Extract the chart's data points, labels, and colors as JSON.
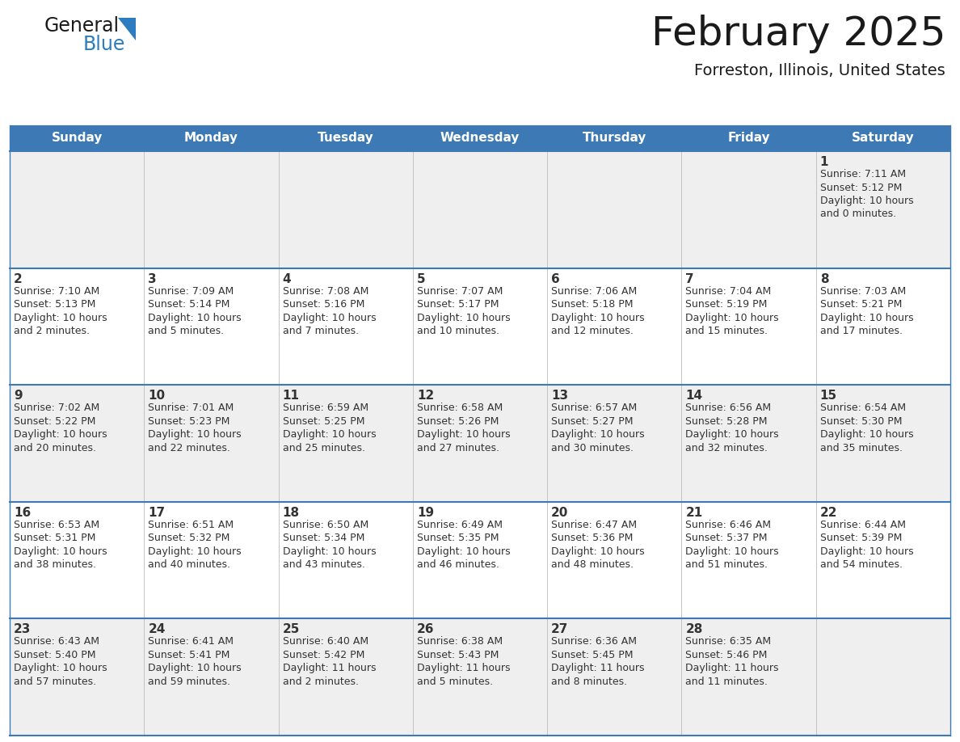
{
  "title": "February 2025",
  "subtitle": "Forreston, Illinois, United States",
  "header_bg_color": "#3D7AB5",
  "header_text_color": "#FFFFFF",
  "day_names": [
    "Sunday",
    "Monday",
    "Tuesday",
    "Wednesday",
    "Thursday",
    "Friday",
    "Saturday"
  ],
  "cell_bg_gray": "#EFEFEF",
  "cell_bg_white": "#FFFFFF",
  "cell_border_color": "#3D7AB5",
  "day_num_color": "#333333",
  "text_color": "#333333",
  "logo_general_color": "#1A1A1A",
  "logo_blue_color": "#2B7DBF",
  "title_fontsize": 36,
  "subtitle_fontsize": 14,
  "dayname_fontsize": 11,
  "day_num_fontsize": 11,
  "info_fontsize": 9,
  "calendar_data": [
    [
      null,
      null,
      null,
      null,
      null,
      null,
      {
        "day": 1,
        "sunrise": "7:11 AM",
        "sunset": "5:12 PM",
        "daylight": "10 hours\nand 0 minutes."
      }
    ],
    [
      {
        "day": 2,
        "sunrise": "7:10 AM",
        "sunset": "5:13 PM",
        "daylight": "10 hours\nand 2 minutes."
      },
      {
        "day": 3,
        "sunrise": "7:09 AM",
        "sunset": "5:14 PM",
        "daylight": "10 hours\nand 5 minutes."
      },
      {
        "day": 4,
        "sunrise": "7:08 AM",
        "sunset": "5:16 PM",
        "daylight": "10 hours\nand 7 minutes."
      },
      {
        "day": 5,
        "sunrise": "7:07 AM",
        "sunset": "5:17 PM",
        "daylight": "10 hours\nand 10 minutes."
      },
      {
        "day": 6,
        "sunrise": "7:06 AM",
        "sunset": "5:18 PM",
        "daylight": "10 hours\nand 12 minutes."
      },
      {
        "day": 7,
        "sunrise": "7:04 AM",
        "sunset": "5:19 PM",
        "daylight": "10 hours\nand 15 minutes."
      },
      {
        "day": 8,
        "sunrise": "7:03 AM",
        "sunset": "5:21 PM",
        "daylight": "10 hours\nand 17 minutes."
      }
    ],
    [
      {
        "day": 9,
        "sunrise": "7:02 AM",
        "sunset": "5:22 PM",
        "daylight": "10 hours\nand 20 minutes."
      },
      {
        "day": 10,
        "sunrise": "7:01 AM",
        "sunset": "5:23 PM",
        "daylight": "10 hours\nand 22 minutes."
      },
      {
        "day": 11,
        "sunrise": "6:59 AM",
        "sunset": "5:25 PM",
        "daylight": "10 hours\nand 25 minutes."
      },
      {
        "day": 12,
        "sunrise": "6:58 AM",
        "sunset": "5:26 PM",
        "daylight": "10 hours\nand 27 minutes."
      },
      {
        "day": 13,
        "sunrise": "6:57 AM",
        "sunset": "5:27 PM",
        "daylight": "10 hours\nand 30 minutes."
      },
      {
        "day": 14,
        "sunrise": "6:56 AM",
        "sunset": "5:28 PM",
        "daylight": "10 hours\nand 32 minutes."
      },
      {
        "day": 15,
        "sunrise": "6:54 AM",
        "sunset": "5:30 PM",
        "daylight": "10 hours\nand 35 minutes."
      }
    ],
    [
      {
        "day": 16,
        "sunrise": "6:53 AM",
        "sunset": "5:31 PM",
        "daylight": "10 hours\nand 38 minutes."
      },
      {
        "day": 17,
        "sunrise": "6:51 AM",
        "sunset": "5:32 PM",
        "daylight": "10 hours\nand 40 minutes."
      },
      {
        "day": 18,
        "sunrise": "6:50 AM",
        "sunset": "5:34 PM",
        "daylight": "10 hours\nand 43 minutes."
      },
      {
        "day": 19,
        "sunrise": "6:49 AM",
        "sunset": "5:35 PM",
        "daylight": "10 hours\nand 46 minutes."
      },
      {
        "day": 20,
        "sunrise": "6:47 AM",
        "sunset": "5:36 PM",
        "daylight": "10 hours\nand 48 minutes."
      },
      {
        "day": 21,
        "sunrise": "6:46 AM",
        "sunset": "5:37 PM",
        "daylight": "10 hours\nand 51 minutes."
      },
      {
        "day": 22,
        "sunrise": "6:44 AM",
        "sunset": "5:39 PM",
        "daylight": "10 hours\nand 54 minutes."
      }
    ],
    [
      {
        "day": 23,
        "sunrise": "6:43 AM",
        "sunset": "5:40 PM",
        "daylight": "10 hours\nand 57 minutes."
      },
      {
        "day": 24,
        "sunrise": "6:41 AM",
        "sunset": "5:41 PM",
        "daylight": "10 hours\nand 59 minutes."
      },
      {
        "day": 25,
        "sunrise": "6:40 AM",
        "sunset": "5:42 PM",
        "daylight": "11 hours\nand 2 minutes."
      },
      {
        "day": 26,
        "sunrise": "6:38 AM",
        "sunset": "5:43 PM",
        "daylight": "11 hours\nand 5 minutes."
      },
      {
        "day": 27,
        "sunrise": "6:36 AM",
        "sunset": "5:45 PM",
        "daylight": "11 hours\nand 8 minutes."
      },
      {
        "day": 28,
        "sunrise": "6:35 AM",
        "sunset": "5:46 PM",
        "daylight": "11 hours\nand 11 minutes."
      },
      null
    ]
  ]
}
